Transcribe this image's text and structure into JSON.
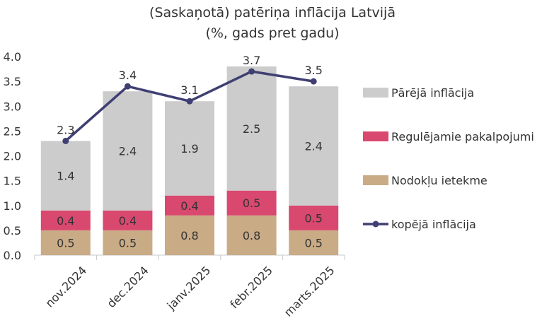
{
  "chart_data": {
    "type": "bar",
    "stacked": true,
    "title": "(Saskaņotā) patēriņa inflācija Latvijā",
    "subtitle": "(%, gads pret gadu)",
    "categories": [
      "nov.2024",
      "dec.2024",
      "janv.2025",
      "febr.2025",
      "marts.2025"
    ],
    "ylim": [
      0,
      4.0
    ],
    "yticks": [
      "0.0",
      "0.5",
      "1.0",
      "1.5",
      "2.0",
      "2.5",
      "3.0",
      "3.5",
      "4.0"
    ],
    "grid": false,
    "legend_position": "right",
    "series": [
      {
        "name": "Nodokļu ietekme",
        "kind": "bar",
        "color": "#c9ab86",
        "values": [
          0.5,
          0.5,
          0.8,
          0.8,
          0.5
        ],
        "labels": [
          "0.5",
          "0.5",
          "0.8",
          "0.8",
          "0.5"
        ]
      },
      {
        "name": "Regulējamie pakalpojumi",
        "kind": "bar",
        "color": "#d9486f",
        "values": [
          0.4,
          0.4,
          0.4,
          0.5,
          0.5
        ],
        "labels": [
          "0.4",
          "0.4",
          "0.4",
          "0.5",
          "0.5"
        ]
      },
      {
        "name": "Pārējā inflācija",
        "kind": "bar",
        "color": "#cccccc",
        "values": [
          1.4,
          2.4,
          1.9,
          2.5,
          2.4
        ],
        "labels": [
          "1.4",
          "2.4",
          "1.9",
          "2.5",
          "2.4"
        ]
      },
      {
        "name": "kopējā inflācija",
        "kind": "line",
        "color": "#3f3f73",
        "values": [
          2.3,
          3.4,
          3.1,
          3.7,
          3.5
        ],
        "labels": [
          "2.3",
          "3.4",
          "3.1",
          "3.7",
          "3.5"
        ]
      }
    ],
    "legend_order": [
      2,
      1,
      0,
      3
    ]
  }
}
